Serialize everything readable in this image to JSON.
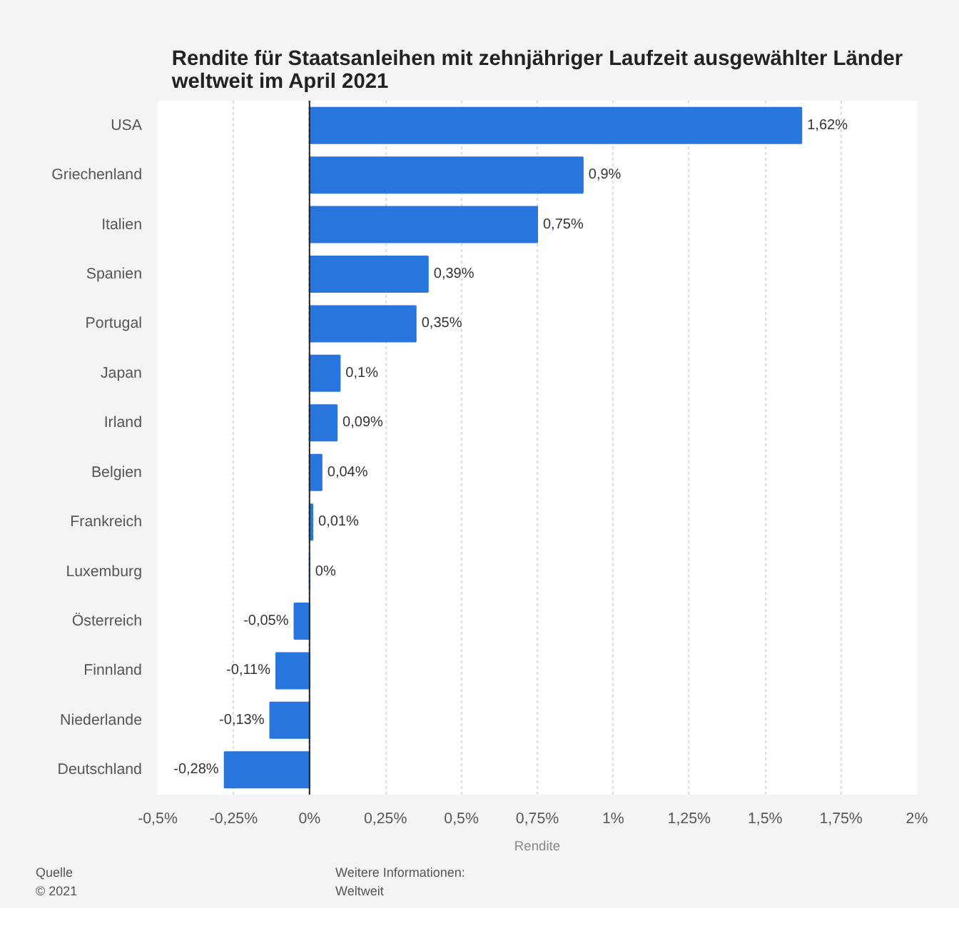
{
  "chart_data": {
    "type": "bar",
    "orientation": "horizontal",
    "title": "Rendite für Staatsanleihen mit zehnjähriger Laufzeit ausgewählter Länder weltweit im April 2021",
    "xlabel": "Rendite",
    "categories": [
      "USA",
      "Griechenland",
      "Italien",
      "Spanien",
      "Portugal",
      "Japan",
      "Irland",
      "Belgien",
      "Frankreich",
      "Luxemburg",
      "Österreich",
      "Finnland",
      "Niederlande",
      "Deutschland"
    ],
    "values": [
      1.62,
      0.9,
      0.75,
      0.39,
      0.35,
      0.1,
      0.09,
      0.04,
      0.01,
      0,
      -0.05,
      -0.11,
      -0.13,
      -0.28
    ],
    "value_labels": [
      "1,62%",
      "0,9%",
      "0,75%",
      "0,39%",
      "0,35%",
      "0,1%",
      "0,09%",
      "0,04%",
      "0,01%",
      "0%",
      "-0,05%",
      "-0,11%",
      "-0,13%",
      "-0,28%"
    ],
    "color": "#2876dd",
    "xlim": [
      -0.5,
      2
    ],
    "xticks": [
      {
        "value": -0.5,
        "label": "-0,5%"
      },
      {
        "value": -0.25,
        "label": "-0,25%"
      },
      {
        "value": 0,
        "label": "0%"
      },
      {
        "value": 0.25,
        "label": "0,25%"
      },
      {
        "value": 0.5,
        "label": "0,5%"
      },
      {
        "value": 0.75,
        "label": "0,75%"
      },
      {
        "value": 1,
        "label": "1%"
      },
      {
        "value": 1.25,
        "label": "1,25%"
      },
      {
        "value": 1.5,
        "label": "1,5%"
      },
      {
        "value": 1.75,
        "label": "1,75%"
      },
      {
        "value": 2,
        "label": "2%"
      }
    ],
    "grid": "x",
    "annotations": [
      "Quelle",
      "© 2021",
      "Weitere Informationen:",
      "Weltweit"
    ]
  }
}
